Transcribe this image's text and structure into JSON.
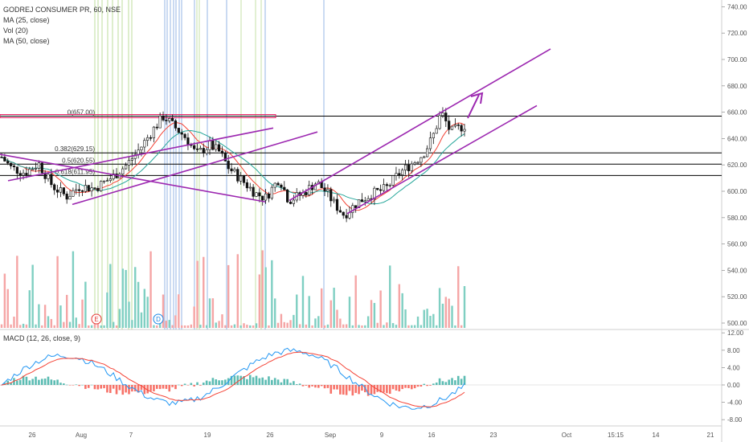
{
  "legend": {
    "symbol": "GODREJ CONSUMER PR, 60, NSE",
    "ma25": "MA (25, close)",
    "vol": "Vol (20)",
    "ma50": "MA (50, close)",
    "macd": "MACD (12, 26, close, 9)"
  },
  "colors": {
    "candle": "#111111",
    "channel": "#9c27b0",
    "ma25": "#f44336",
    "ma50": "#26a69a",
    "macd_line": "#2196f3",
    "signal_line": "#f44336",
    "vol_up": "#7fcfc2",
    "vol_down": "#f5a5a5",
    "vline_green": "#9ccc65",
    "vline_blue": "#5c8fd6"
  },
  "chart_data": {
    "type": "candlestick",
    "price_axis": {
      "ticks": [
        "740.00",
        "720.00",
        "700.00",
        "680.00",
        "660.00",
        "640.00",
        "620.00",
        "600.00",
        "580.00",
        "560.00",
        "540.00",
        "520.00",
        "500.00"
      ],
      "values": [
        740,
        720,
        700,
        680,
        660,
        640,
        620,
        600,
        580,
        560,
        540,
        520,
        500
      ]
    },
    "macd_axis": {
      "ticks": [
        "12.00",
        "8.00",
        "4.00",
        "0.00",
        "-4.00",
        "-8.00"
      ],
      "values": [
        12,
        8,
        4,
        0,
        -4,
        -8
      ]
    },
    "time_axis": {
      "labels": [
        "26",
        "Aug",
        "7",
        "19",
        "26",
        "Sep",
        "9",
        "16",
        "23",
        "Oct",
        "15:15",
        "14",
        "21"
      ]
    },
    "fib_levels": [
      {
        "label": "0(657.00)",
        "value": 657.0
      },
      {
        "label": "0.382(629.15)",
        "value": 629.15
      },
      {
        "label": "0.5(620.55)",
        "value": 620.55
      },
      {
        "label": "0.618(611.95)",
        "value": 611.95
      }
    ],
    "markers": [
      {
        "label": "E",
        "color": "#e53935"
      },
      {
        "label": "D",
        "color": "#1e88e5"
      }
    ],
    "price_path": [
      {
        "x": 0.0,
        "y": 626
      },
      {
        "x": 0.02,
        "y": 618
      },
      {
        "x": 0.05,
        "y": 614
      },
      {
        "x": 0.08,
        "y": 621
      },
      {
        "x": 0.11,
        "y": 604
      },
      {
        "x": 0.14,
        "y": 596
      },
      {
        "x": 0.17,
        "y": 604
      },
      {
        "x": 0.2,
        "y": 602
      },
      {
        "x": 0.24,
        "y": 611
      },
      {
        "x": 0.27,
        "y": 620
      },
      {
        "x": 0.3,
        "y": 633
      },
      {
        "x": 0.33,
        "y": 648
      },
      {
        "x": 0.35,
        "y": 657
      },
      {
        "x": 0.37,
        "y": 650
      },
      {
        "x": 0.4,
        "y": 640
      },
      {
        "x": 0.42,
        "y": 628
      },
      {
        "x": 0.45,
        "y": 635
      },
      {
        "x": 0.47,
        "y": 630
      },
      {
        "x": 0.49,
        "y": 618
      },
      {
        "x": 0.52,
        "y": 608
      },
      {
        "x": 0.55,
        "y": 598
      },
      {
        "x": 0.57,
        "y": 595
      },
      {
        "x": 0.6,
        "y": 610
      },
      {
        "x": 0.62,
        "y": 593
      },
      {
        "x": 0.65,
        "y": 598
      },
      {
        "x": 0.68,
        "y": 607
      },
      {
        "x": 0.7,
        "y": 600
      },
      {
        "x": 0.72,
        "y": 590
      },
      {
        "x": 0.74,
        "y": 582
      },
      {
        "x": 0.77,
        "y": 592
      },
      {
        "x": 0.8,
        "y": 598
      },
      {
        "x": 0.83,
        "y": 602
      },
      {
        "x": 0.86,
        "y": 614
      },
      {
        "x": 0.89,
        "y": 622
      },
      {
        "x": 0.91,
        "y": 628
      },
      {
        "x": 0.93,
        "y": 640
      },
      {
        "x": 0.95,
        "y": 660
      },
      {
        "x": 0.97,
        "y": 645
      },
      {
        "x": 1.0,
        "y": 650
      }
    ]
  }
}
